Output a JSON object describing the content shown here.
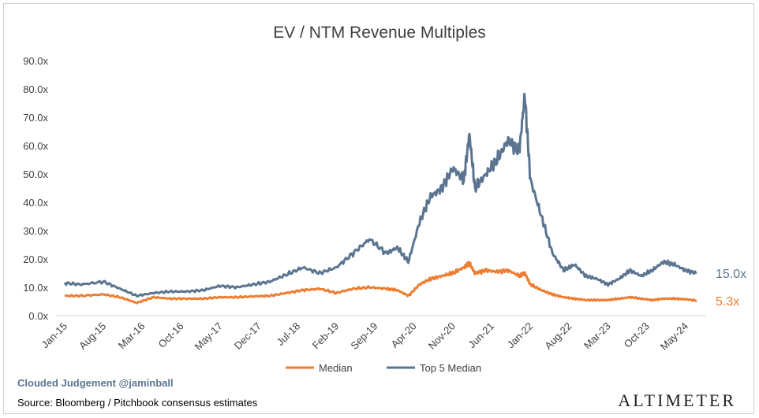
{
  "chart_data": {
    "type": "line",
    "title": "EV / NTM Revenue Multiples",
    "ylim": [
      0,
      90
    ],
    "y_ticks": [
      "0.0x",
      "10.0x",
      "20.0x",
      "30.0x",
      "40.0x",
      "50.0x",
      "60.0x",
      "70.0x",
      "80.0x",
      "90.0x"
    ],
    "x_ticks": [
      "Jan-15",
      "Aug-15",
      "Mar-16",
      "Oct-16",
      "May-17",
      "Dec-17",
      "Jul-18",
      "Feb-19",
      "Sep-19",
      "Apr-20",
      "Nov-20",
      "Jun-21",
      "Jan-22",
      "Aug-22",
      "Mar-23",
      "Oct-23",
      "May-24"
    ],
    "x": [
      "2015-01",
      "2015-04",
      "2015-08",
      "2015-11",
      "2016-02",
      "2016-05",
      "2016-08",
      "2016-11",
      "2017-02",
      "2017-05",
      "2017-08",
      "2017-11",
      "2018-02",
      "2018-05",
      "2018-08",
      "2018-11",
      "2019-02",
      "2019-05",
      "2019-08",
      "2019-11",
      "2020-01",
      "2020-03",
      "2020-05",
      "2020-07",
      "2020-09",
      "2020-11",
      "2021-01",
      "2021-02",
      "2021-03",
      "2021-05",
      "2021-07",
      "2021-09",
      "2021-11",
      "2021-12",
      "2022-01",
      "2022-03",
      "2022-05",
      "2022-07",
      "2022-09",
      "2022-11",
      "2023-01",
      "2023-03",
      "2023-05",
      "2023-07",
      "2023-09",
      "2023-11",
      "2024-01",
      "2024-03",
      "2024-05",
      "2024-07"
    ],
    "series": [
      {
        "name": "Median",
        "color": "#ed7d31",
        "values": [
          7.0,
          7.0,
          7.5,
          6.5,
          4.5,
          6.5,
          6.0,
          6.0,
          6.0,
          6.5,
          6.5,
          6.8,
          7.0,
          8.0,
          9.0,
          9.5,
          8.0,
          9.5,
          10.0,
          9.5,
          9.0,
          7.0,
          11.0,
          13.0,
          14.0,
          15.0,
          17.0,
          18.5,
          15.0,
          16.0,
          15.5,
          16.0,
          14.0,
          15.0,
          11.0,
          9.0,
          7.5,
          6.5,
          6.0,
          5.5,
          5.5,
          5.5,
          6.0,
          6.5,
          6.0,
          5.5,
          6.0,
          6.0,
          5.8,
          5.3
        ]
      },
      {
        "name": "Top 5 Median",
        "color": "#5b7590",
        "values": [
          11.5,
          11.0,
          12.0,
          9.5,
          7.0,
          8.0,
          8.5,
          8.5,
          9.0,
          10.5,
          10.0,
          11.0,
          12.0,
          14.5,
          17.0,
          15.0,
          17.0,
          22.0,
          27.0,
          22.0,
          24.0,
          19.0,
          33.0,
          42.0,
          45.0,
          52.0,
          48.0,
          64.0,
          45.0,
          50.0,
          55.0,
          62.0,
          58.0,
          78.0,
          48.0,
          35.0,
          22.0,
          16.0,
          18.0,
          14.0,
          13.0,
          11.0,
          13.0,
          16.0,
          14.0,
          16.0,
          19.0,
          18.0,
          16.0,
          15.0
        ]
      }
    ],
    "end_labels": [
      "5.3x",
      "15.0x"
    ],
    "legend": [
      "Median",
      "Top 5 Median"
    ],
    "legend_position": "bottom",
    "grid": false
  },
  "footer": {
    "credit": "Clouded Judgement @jaminball",
    "source": "Source: Bloomberg / Pitchbook consensus estimates",
    "brand": "ALTIMETER"
  }
}
